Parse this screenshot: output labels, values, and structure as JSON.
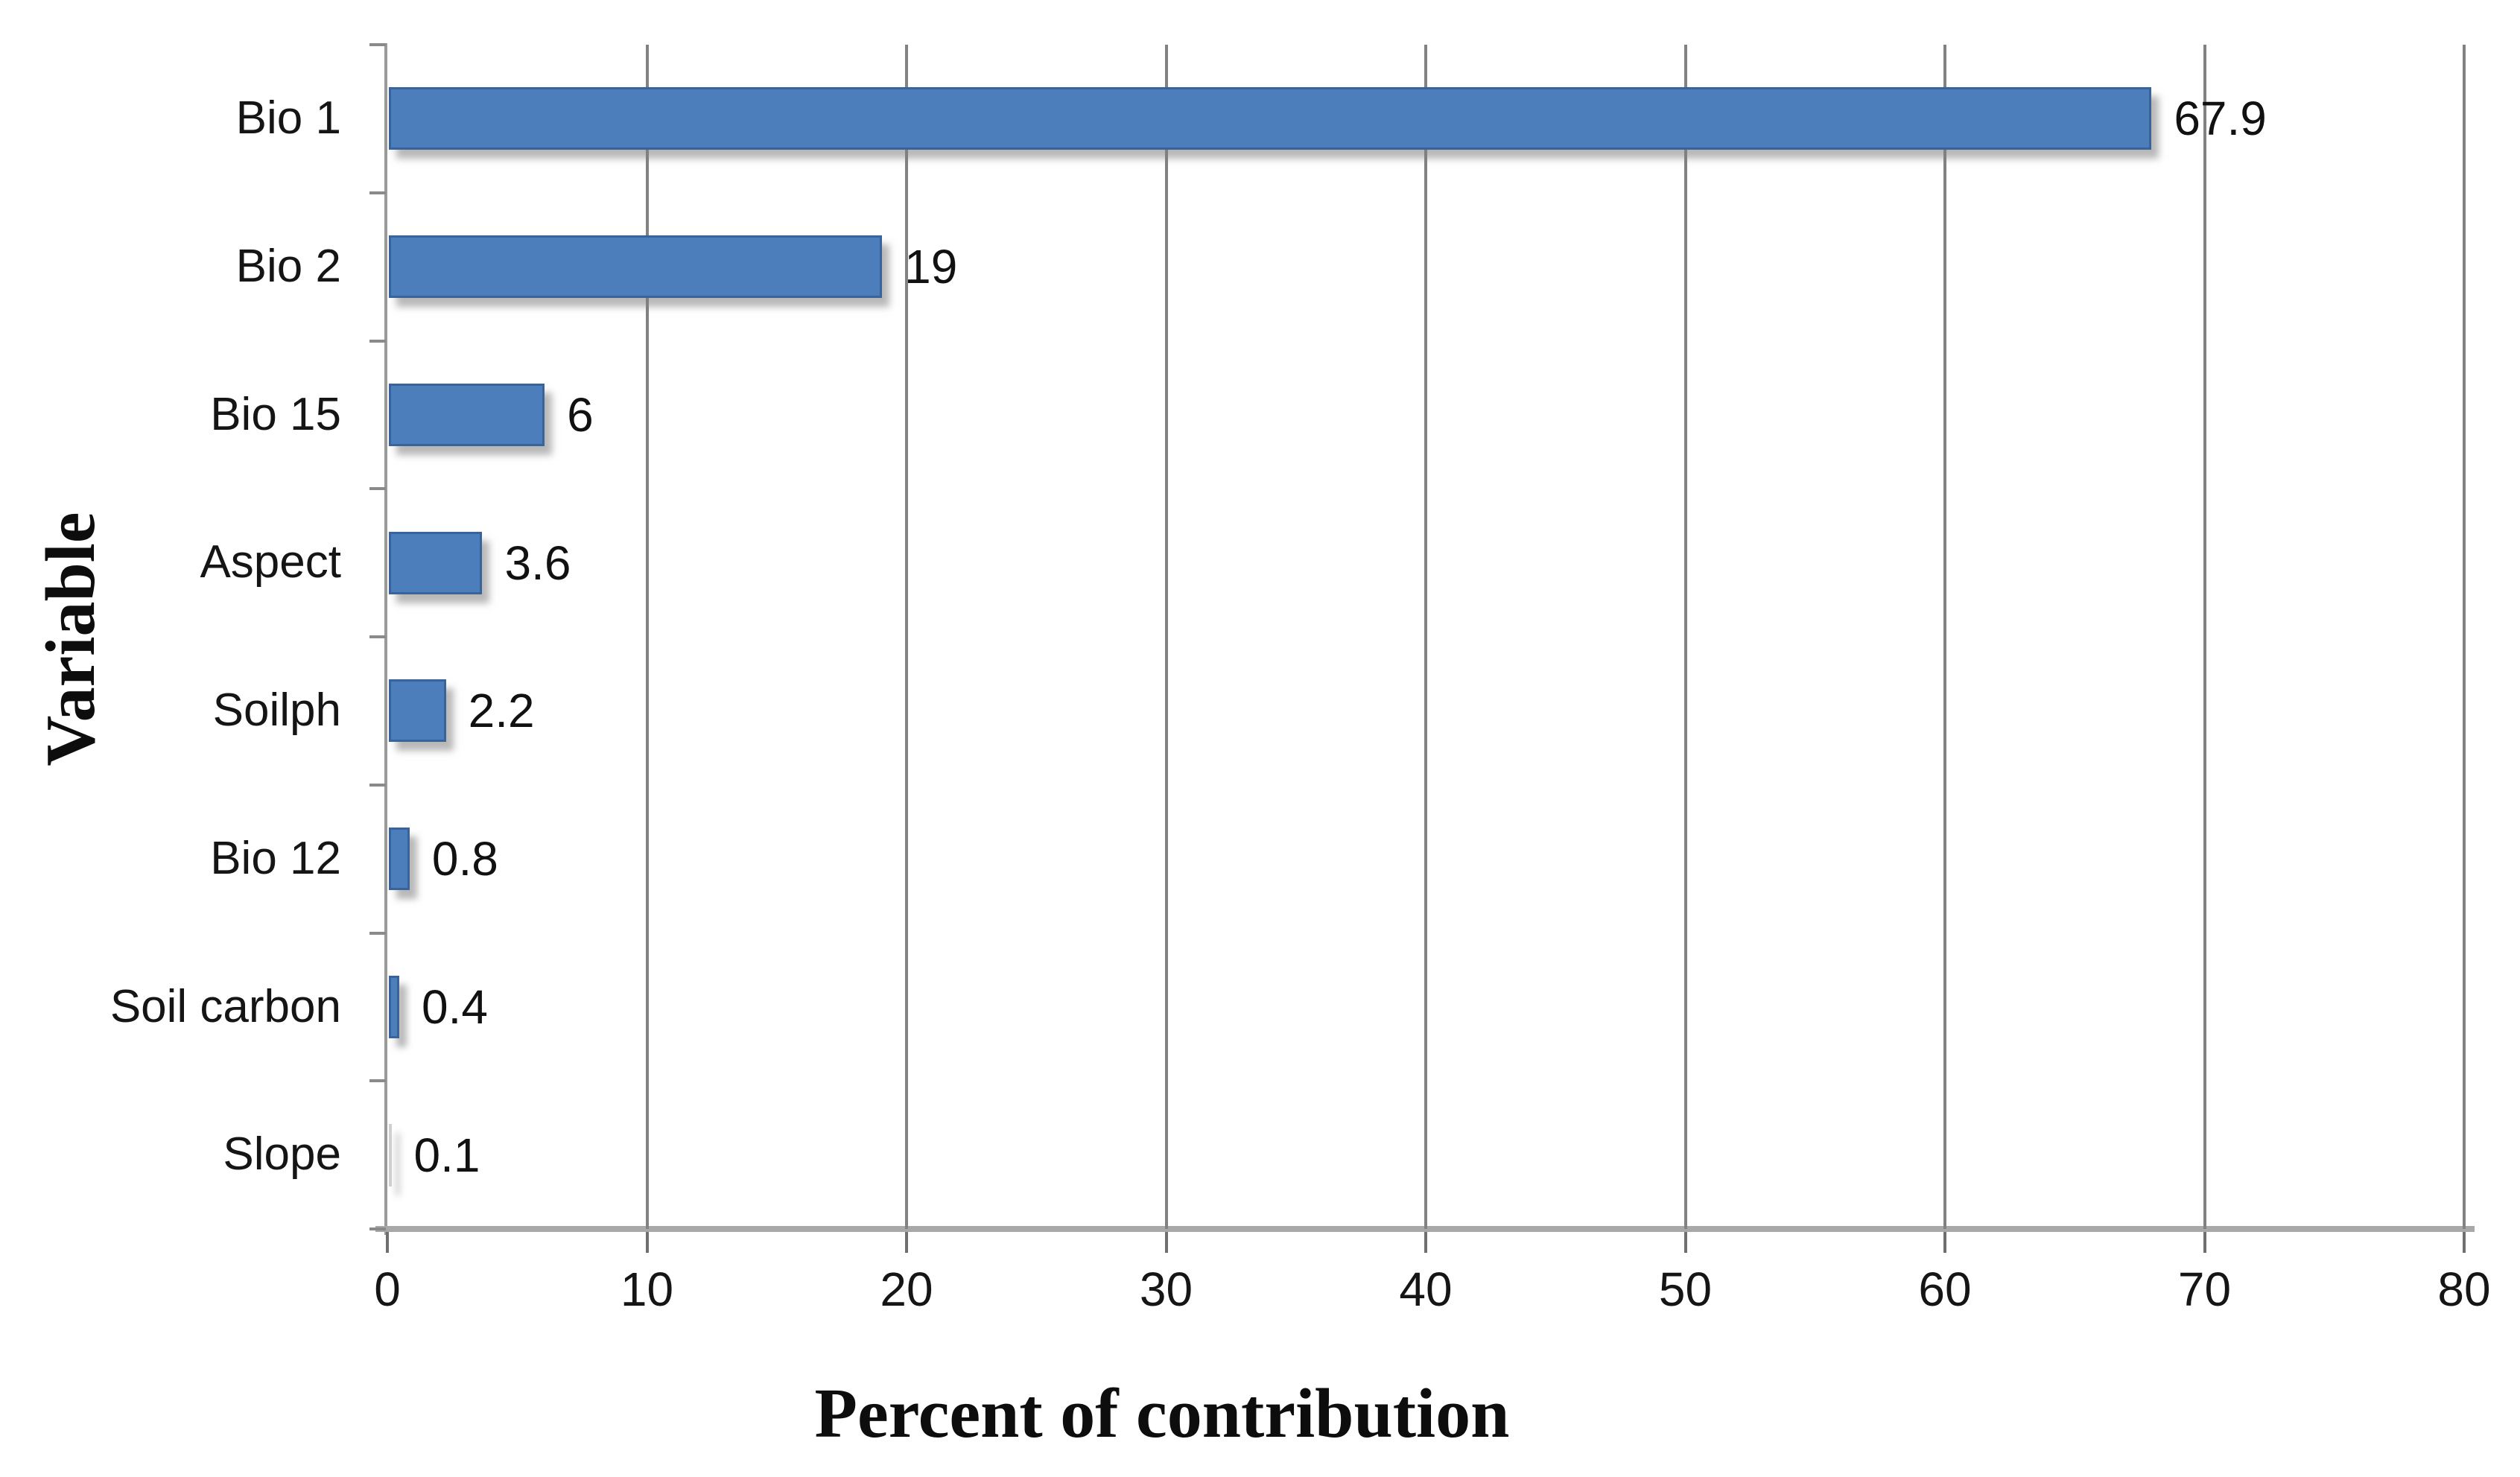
{
  "chart_data": {
    "type": "bar",
    "orientation": "horizontal",
    "title": "",
    "xlabel": "Percent of contribution",
    "ylabel": "Variable",
    "categories": [
      "Bio 1",
      "Bio 2",
      "Bio 15",
      "Aspect",
      "Soilph",
      "Bio 12",
      "Soil carbon",
      "Slope"
    ],
    "values": [
      67.9,
      19,
      6,
      3.6,
      2.2,
      0.8,
      0.4,
      0.1
    ],
    "value_labels": [
      "67.9",
      "19",
      "6",
      "3.6",
      "2.2",
      "0.8",
      "0.4",
      "0.1"
    ],
    "xlim": [
      0,
      80
    ],
    "xticks": [
      0,
      10,
      20,
      30,
      40,
      50,
      60,
      70,
      80
    ],
    "grid": "vertical gridlines",
    "legend": "none",
    "colors": {
      "bar_fill": "#4d7ebc",
      "bar_border": "#38639b",
      "gridline": "#828282",
      "axis_line": "#a8a8a8",
      "text": "#111111"
    }
  }
}
